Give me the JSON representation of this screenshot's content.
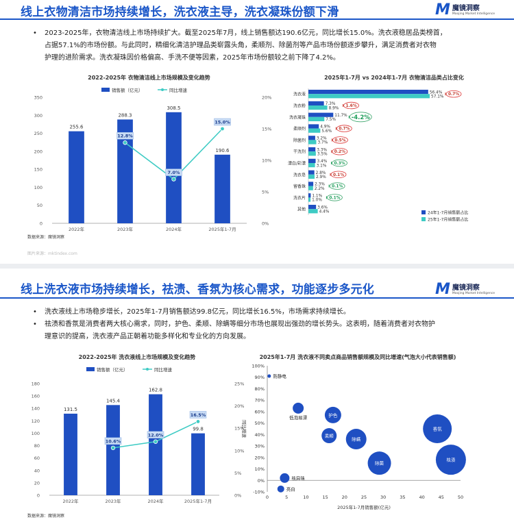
{
  "slide1": {
    "title": "线上衣物清洁市场持续增长，洗衣液主导，洗衣凝珠份额下滑",
    "logo_name": "魔镜洞察",
    "logo_sub": "Moojing Market Intelligence",
    "bullet_lines": [
      "2023-2025年，衣物清洁线上市场持续扩大。截至2025年7月，线上销售额达190.6亿元，同比增长15.0%。洗衣液稳居品类榜首，",
      "占据57.1%的市场份额。与此同时，精细化清洁护理品类崭露头角，柔顺剂、除菌剂等产品市场份额逐步攀升，满足消费者对衣物",
      "护理的进阶需求。洗衣凝珠因价格偏高、手洗不便等因素，2025年市场份额较之前下降了4.2%。"
    ],
    "source": "数据来源：魔镜洞察",
    "watermark": "图片来源：mktindex.com"
  },
  "slide2": {
    "title": "线上洗衣液市场持续增长，祛渍、香氛为核心需求，功能逐步多元化",
    "logo_name": "魔镜洞察",
    "logo_sub": "Moojing Market Intelligence",
    "bullet1": "洗衣液线上市场稳步增长，2025年1-7月销售额达99.8亿元，同比增长16.5%，市场需求持续增长。",
    "bullet2_lines": [
      "祛渍和香氛是消费者两大核心需求，同时，护色、柔顺、除螨等细分市场也展现出强劲的增长势头。这表明，随着消费者对衣物护",
      "理意识的提高，洗衣液产品正朝着功能多样化和专业化的方向发展。"
    ],
    "source": "数据来源：魔镜洞察"
  },
  "chart_data": [
    {
      "type": "bar",
      "title": "2022-2025年 衣物清洁线上市场规模及变化趋势",
      "categories": [
        "2022年",
        "2023年",
        "2024年",
        "2025年1-7月"
      ],
      "series": [
        {
          "name": "销售额（亿元）",
          "values": [
            255.6,
            288.3,
            308.5,
            190.6
          ],
          "color": "#1f4fc2"
        },
        {
          "name": "同比增速",
          "values": [
            null,
            12.8,
            7.0,
            15.0
          ],
          "value_labels": [
            "",
            "12.8%",
            "7.0%",
            "15.0%"
          ],
          "color": "#3ecbc4"
        }
      ],
      "ylim": [
        0,
        350
      ],
      "yticks": [
        "0",
        "50",
        "100",
        "150",
        "200",
        "250",
        "300",
        "350"
      ],
      "y2lim": [
        0,
        20
      ],
      "y2ticks": [
        "0%",
        "5%",
        "10%",
        "15%",
        "20%"
      ],
      "legend": "top"
    },
    {
      "type": "bar",
      "title": "2025年1-7月 vs 2024年1-7月 衣物清洁品类占比变化",
      "categories": [
        "洗衣液",
        "洗衣粉",
        "洗衣凝珠",
        "柔顺剂",
        "除菌剂",
        "干洗剂",
        "漂白/彩漂",
        "洗衣皂",
        "留香珠",
        "洗衣片",
        "其他"
      ],
      "series": [
        {
          "name": "24年1-7月销售额占比",
          "values": [
            56.4,
            7.3,
            11.7,
            4.9,
            3.2,
            3.3,
            3.4,
            2.8,
            2.3,
            1.1,
            3.6
          ],
          "labels": [
            "56.4%",
            "7.3%",
            "11.7%",
            "4.9%",
            "3.2%",
            "3.3%",
            "3.4%",
            "2.8%",
            "2.3%",
            "1.1%",
            "3.6%"
          ],
          "color": "#1f4fc2"
        },
        {
          "name": "25年1-7月销售额占比",
          "values": [
            57.1,
            8.9,
            7.5,
            5.6,
            3.7,
            3.5,
            3.1,
            2.9,
            2.2,
            1.0,
            4.4
          ],
          "labels": [
            "57.1%",
            "8.9%",
            "7.5%",
            "5.6%",
            "3.7%",
            "3.5%",
            "3.1%",
            "2.9%",
            "2.2%",
            "1.0%",
            "4.4%"
          ],
          "color": "#3ecbc4"
        }
      ],
      "changes": [
        {
          "label": "0.7%",
          "dir": "up"
        },
        {
          "label": "1.6%",
          "dir": "up"
        },
        {
          "label": "-4.2%",
          "dir": "down"
        },
        {
          "label": "0.7%",
          "dir": "up"
        },
        {
          "label": "0.5%",
          "dir": "up"
        },
        {
          "label": "0.2%",
          "dir": "up"
        },
        {
          "label": "0.3%",
          "dir": "down"
        },
        {
          "label": "0.1%",
          "dir": "up"
        },
        {
          "label": "0.1%",
          "dir": "down"
        },
        {
          "label": "0.1%",
          "dir": "down"
        },
        {
          "label": "",
          "dir": "none"
        }
      ],
      "legend": "bottom-right"
    },
    {
      "type": "bar",
      "title": "2022-2025年 洗衣液线上市场规模及变化趋势",
      "categories": [
        "2022年",
        "2023年",
        "2024年",
        "2025年1-7月"
      ],
      "series": [
        {
          "name": "销售额（亿元）",
          "values": [
            131.5,
            145.4,
            162.8,
            99.8
          ],
          "color": "#1f4fc2"
        },
        {
          "name": "同比增速",
          "values": [
            null,
            10.6,
            12.0,
            16.5
          ],
          "value_labels": [
            "",
            "10.6%",
            "12.0%",
            "16.5%"
          ],
          "color": "#3ecbc4"
        }
      ],
      "ylim": [
        0,
        180
      ],
      "yticks": [
        "0",
        "20",
        "40",
        "60",
        "80",
        "100",
        "120",
        "140",
        "160",
        "180"
      ],
      "y2lim": [
        0,
        25
      ],
      "y2ticks": [
        "0%",
        "5%",
        "10%",
        "15%",
        "20%",
        "25%"
      ],
      "legend": "top"
    },
    {
      "type": "scatter",
      "title": "2025年1-7月 洗衣液不同卖点商品销售额规模及同比增速(气泡大小代表销售额)",
      "xlabel": "2025年1-7月销售额(亿元)",
      "ylabel": "同比增速",
      "xlim": [
        0,
        50
      ],
      "ylim": [
        -10,
        100
      ],
      "xticks": [
        "0",
        "5",
        "10",
        "15",
        "20",
        "25",
        "30",
        "35",
        "40",
        "45",
        "50"
      ],
      "yticks": [
        "-10%",
        "0%",
        "10%",
        "20%",
        "30%",
        "40%",
        "50%",
        "60%",
        "70%",
        "80%",
        "90%",
        "100%"
      ],
      "points": [
        {
          "label": "防静电",
          "x": 0.5,
          "y": 91,
          "r": 2.5,
          "label_pos": "right"
        },
        {
          "label": "低泡易漂",
          "x": 8,
          "y": 63,
          "r": 8,
          "label_pos": "below"
        },
        {
          "label": "护色",
          "x": 17,
          "y": 57,
          "r": 12,
          "label_pos": "center"
        },
        {
          "label": "柔顺",
          "x": 16,
          "y": 39,
          "r": 11,
          "label_pos": "center"
        },
        {
          "label": "除螨",
          "x": 23,
          "y": 36,
          "r": 15,
          "label_pos": "center"
        },
        {
          "label": "除菌",
          "x": 29,
          "y": 15,
          "r": 17,
          "label_pos": "center"
        },
        {
          "label": "香氛",
          "x": 44,
          "y": 45,
          "r": 21,
          "label_pos": "center"
        },
        {
          "label": "祛渍",
          "x": 47.5,
          "y": 18,
          "r": 22,
          "label_pos": "center"
        },
        {
          "label": "祛异味",
          "x": 4.5,
          "y": 2,
          "r": 7,
          "label_pos": "right"
        },
        {
          "label": "亮白",
          "x": 3.5,
          "y": -7.5,
          "r": 5,
          "label_pos": "right"
        }
      ]
    }
  ]
}
